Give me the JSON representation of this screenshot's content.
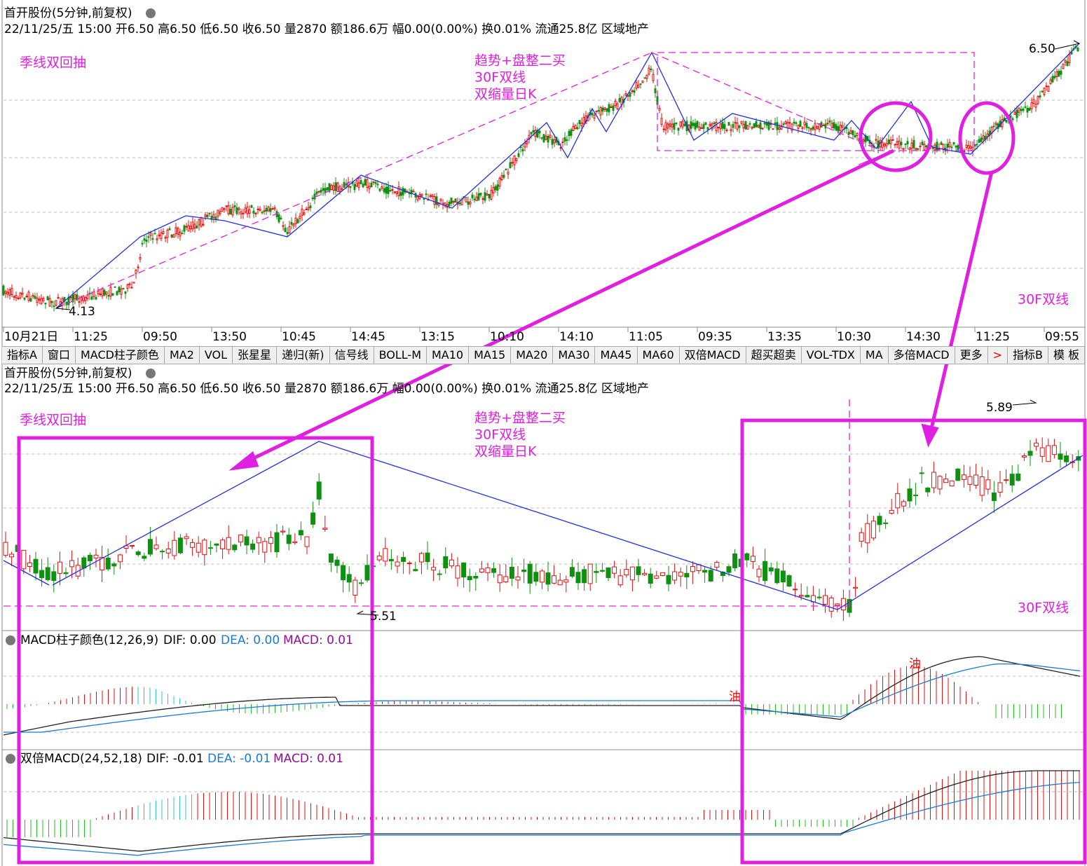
{
  "top_panel": {
    "title": "首开股份(5分钟,前复权)",
    "info": "22/11/25/五 15:00 开6.50 高6.50 低6.50 收6.50 量2870 额186.6万 幅0.00(0.00%) 换0.01% 流通25.8亿 区域地产",
    "annotations": [
      "季线双回抽",
      "趋势+盘整二买",
      "30F双线",
      "双缩量日K",
      "30F双线"
    ],
    "price_high": "6.50",
    "price_low": "4.13",
    "time_axis": [
      "10月21日",
      "11:25",
      "09:50",
      "13:50",
      "10:45",
      "14:45",
      "13:15",
      "10:10",
      "14:10",
      "11:05",
      "09:35",
      "13:35",
      "10:30",
      "14:30",
      "11:25",
      "09:55"
    ]
  },
  "tabs": [
    "指标A",
    "窗口",
    "MACD柱子颜色",
    "MA2",
    "VOL",
    "张星星",
    "递归(新)",
    "信号线",
    "BOLL-M",
    "MA10",
    "MA15",
    "MA20",
    "MA30",
    "MA45",
    "MA60",
    "双倍MACD",
    "超买超卖",
    "VOL-TDX",
    "MA",
    "多倍MACD",
    "更多",
    ">",
    "指标B",
    "模 板"
  ],
  "bottom_panel": {
    "title": "首开股份(5分钟,前复权)",
    "info": "22/11/25/五 15:00 开6.50 高6.50 低6.50 收6.50 量2870 额186.6万 幅0.00(0.00%) 换0.01% 流通25.8亿 区域地产",
    "annotations": [
      "季线双回抽",
      "趋势+盘整二买",
      "30F双线",
      "双缩量日K",
      "30F双线"
    ],
    "price_high": "5.89",
    "price_low": "5.51"
  },
  "macd_panel": {
    "name": "MACD柱子颜色(12,26,9)",
    "dif": "DIF: 0.00",
    "dea": "DEA: 0.00",
    "macd": "MACD: 0.01",
    "markers": [
      "油",
      "油"
    ]
  },
  "double_macd_panel": {
    "name": "双倍MACD(24,52,18)",
    "dif": "DIF: -0.01",
    "dea": "DEA: -0.01",
    "macd": "MACD: 0.01"
  }
}
